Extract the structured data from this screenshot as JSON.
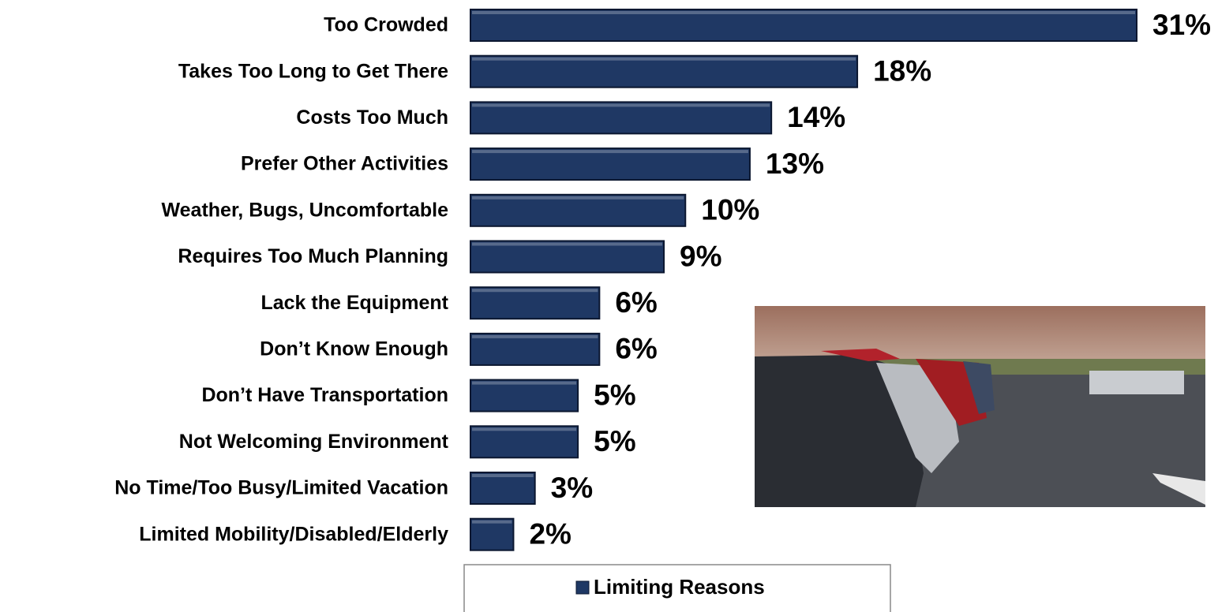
{
  "chart_data": {
    "type": "bar",
    "orientation": "horizontal",
    "categories": [
      "Too Crowded",
      "Takes Too Long to Get There",
      "Costs Too Much",
      "Prefer Other Activities",
      "Weather, Bugs, Uncomfortable",
      "Requires Too Much Planning",
      "Lack the Equipment",
      "Don’t Know Enough",
      "Don’t Have Transportation",
      "Not Welcoming Environment",
      "No Time/Too Busy/Limited Vacation",
      "Limited Mobility/Disabled/Elderly"
    ],
    "series": [
      {
        "name": "Limiting Reasons",
        "color": "#1f3864",
        "values": [
          31,
          18,
          14,
          13,
          10,
          9,
          6,
          6,
          5,
          5,
          3,
          2
        ],
        "value_labels": [
          "31%",
          "18%",
          "14%",
          "13%",
          "10%",
          "9%",
          "6%",
          "6%",
          "5%",
          "5%",
          "3%",
          "2%"
        ]
      }
    ],
    "xlim": [
      0,
      31
    ],
    "legend": "bottom"
  }
}
